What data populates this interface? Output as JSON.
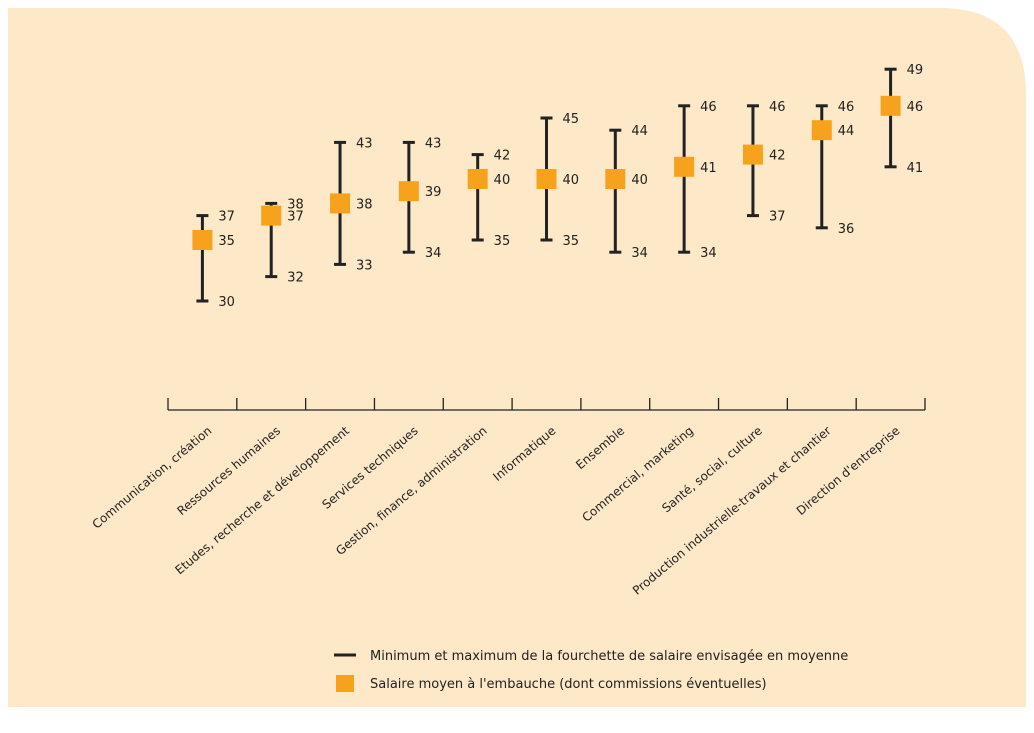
{
  "colors": {
    "background": "#fde8c7",
    "range_line": "#222222",
    "mean_marker": "#f7a21c"
  },
  "chart_data": {
    "type": "range",
    "categories": [
      "Communication, création",
      "Ressources humaines",
      "Etudes, recherche et développement",
      "Services techniques",
      "Gestion, finance, administration",
      "Informatique",
      "Ensemble",
      "Commercial, marketing",
      "Santé, social, culture",
      "Production industrielle-travaux et chantier",
      "Direction d'entreprise"
    ],
    "series": [
      {
        "name": "Minimum et maximum de la fourchette de salaire envisagée en moyenne",
        "min": [
          30,
          32,
          33,
          34,
          35,
          35,
          34,
          34,
          37,
          36,
          41
        ],
        "max": [
          37,
          38,
          43,
          43,
          42,
          45,
          44,
          46,
          46,
          46,
          49
        ]
      },
      {
        "name": "Salaire moyen à l'embauche (dont commissions éventuelles)",
        "values": [
          35,
          37,
          38,
          39,
          40,
          40,
          40,
          41,
          42,
          44,
          46
        ]
      }
    ],
    "ylim": [
      24,
      51
    ],
    "grid": false,
    "legend_position": "bottom-center"
  },
  "legend": {
    "range_label": "Minimum et maximum de la fourchette de salaire envisagée en moyenne",
    "mean_label": "Salaire moyen à l'embauche (dont commissions éventuelles)"
  }
}
